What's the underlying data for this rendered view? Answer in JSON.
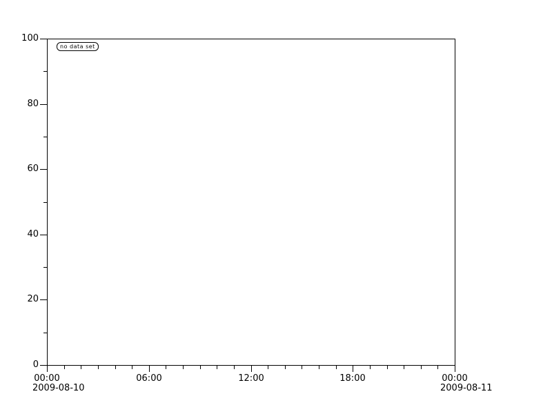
{
  "chart_data": {
    "type": "line",
    "title": "",
    "series": [],
    "legend_label": "no data set",
    "legend_position": "top-left",
    "grid": false,
    "x_axis": {
      "range_hours": [
        0,
        24
      ],
      "major_step_hours": 6,
      "minor_step_hours": 1,
      "tick_labels": [
        "00:00",
        "06:00",
        "12:00",
        "18:00",
        "00:00"
      ],
      "date_labels": [
        {
          "text": "2009-08-10",
          "hour": 0
        },
        {
          "text": "2009-08-11",
          "hour": 24
        }
      ]
    },
    "y_axis": {
      "range": [
        0,
        100
      ],
      "major_ticks": [
        0,
        20,
        40,
        60,
        80,
        100
      ],
      "minor_ticks": [
        10,
        30,
        50,
        70,
        90
      ]
    },
    "colors": {
      "axis": "#000000",
      "text": "#000000",
      "background": "#ffffff"
    }
  }
}
